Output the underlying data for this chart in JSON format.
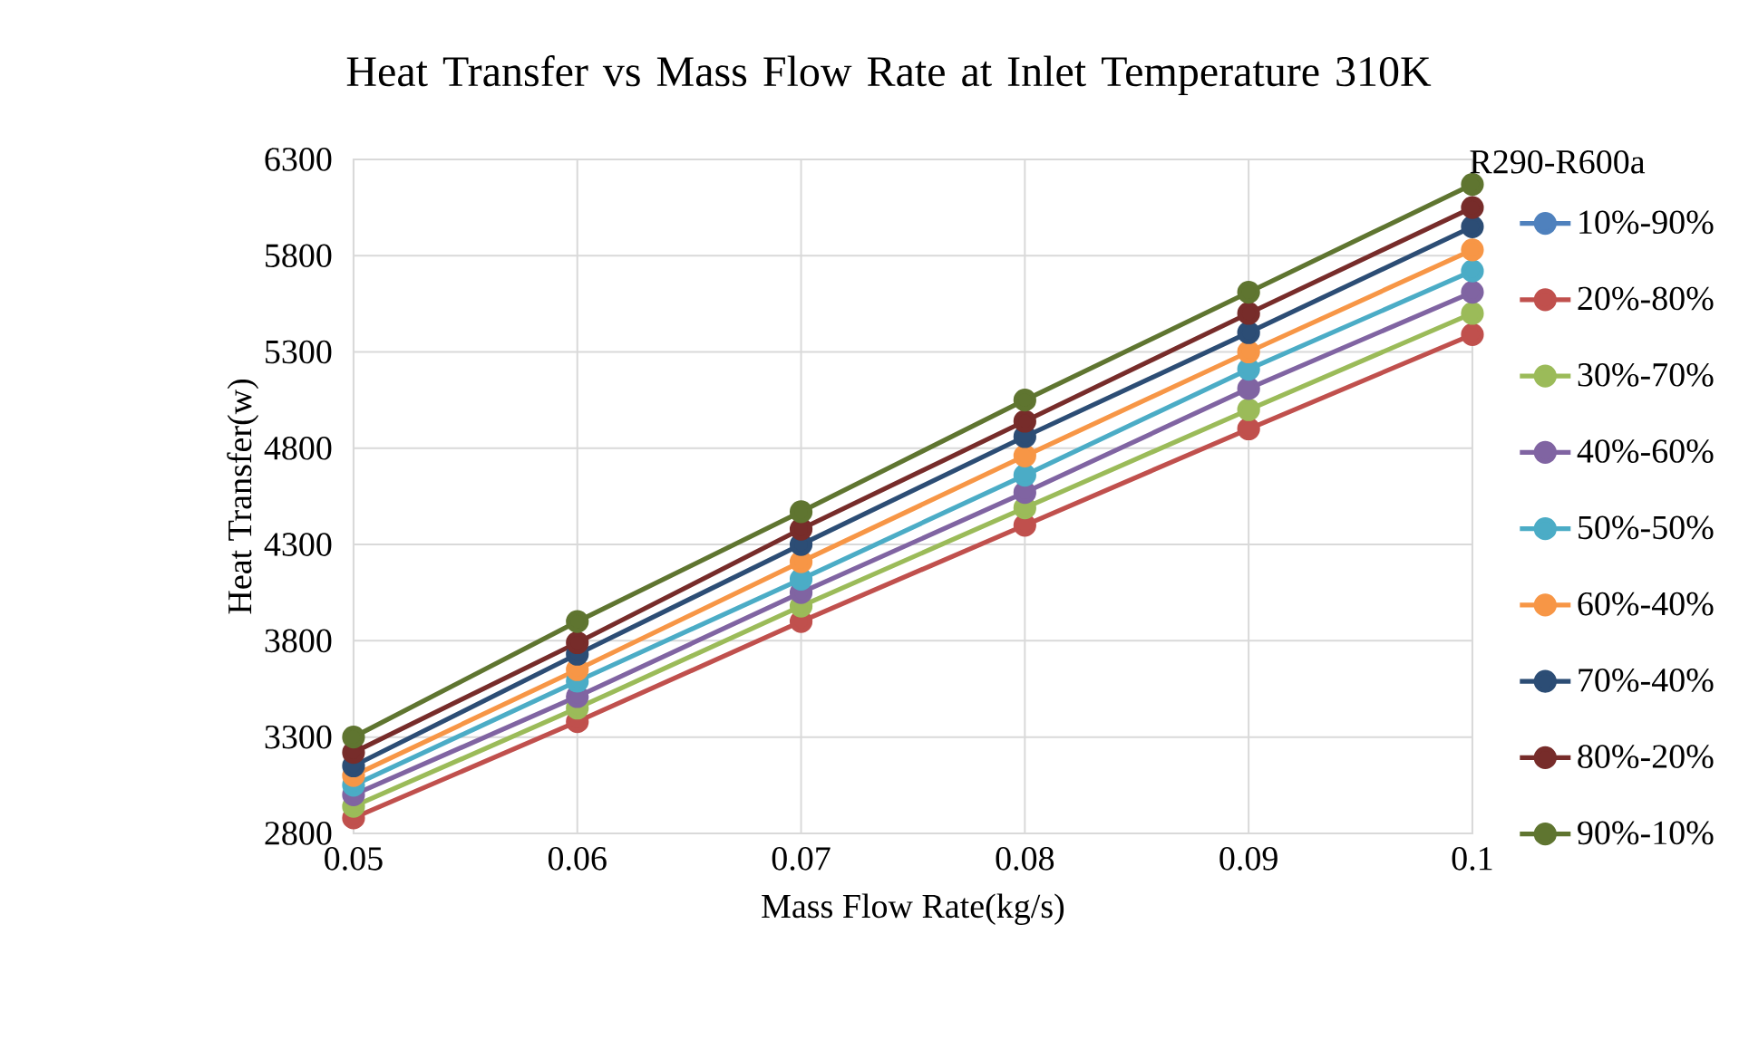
{
  "chart_data": {
    "type": "line",
    "title": "Heat Transfer vs Mass Flow Rate at Inlet Temperature 310K",
    "xlabel": "Mass Flow Rate(kg/s)",
    "ylabel": "Heat Transfer(w)",
    "legend_title": "R290-R600a",
    "x": [
      0.05,
      0.06,
      0.07,
      0.08,
      0.09,
      0.1
    ],
    "xlim": [
      0.05,
      0.1
    ],
    "xticks": [
      0.05,
      0.06,
      0.07,
      0.08,
      0.09,
      0.1
    ],
    "ylim": [
      2800,
      6300
    ],
    "yticks": [
      2800,
      3300,
      3800,
      4300,
      4800,
      5300,
      5800,
      6300
    ],
    "grid": true,
    "legend": "right",
    "marker": "circle",
    "series": [
      {
        "name": "10%-90%",
        "color": "#4f81bd",
        "values": [
          null,
          null,
          null,
          null,
          null,
          null
        ]
      },
      {
        "name": "20%-80%",
        "color": "#c0504d",
        "values": [
          2880,
          3380,
          3900,
          4400,
          4900,
          5390
        ]
      },
      {
        "name": "30%-70%",
        "color": "#9bbb59",
        "values": [
          2940,
          3450,
          3980,
          4490,
          5000,
          5500
        ]
      },
      {
        "name": "40%-60%",
        "color": "#8064a2",
        "values": [
          3000,
          3510,
          4050,
          4570,
          5110,
          5610
        ]
      },
      {
        "name": "50%-50%",
        "color": "#4bacc6",
        "values": [
          3050,
          3590,
          4120,
          4660,
          5210,
          5720
        ]
      },
      {
        "name": "60%-40%",
        "color": "#f79646",
        "values": [
          3100,
          3650,
          4210,
          4760,
          5300,
          5830
        ]
      },
      {
        "name": "70%-40%",
        "color": "#2c4d75",
        "values": [
          3150,
          3730,
          4300,
          4860,
          5400,
          5950
        ]
      },
      {
        "name": "80%-20%",
        "color": "#772c2a",
        "values": [
          3220,
          3790,
          4380,
          4940,
          5500,
          6050
        ]
      },
      {
        "name": "90%-10%",
        "color": "#5f7530",
        "values": [
          3300,
          3900,
          4470,
          5050,
          5610,
          6170
        ]
      }
    ]
  }
}
